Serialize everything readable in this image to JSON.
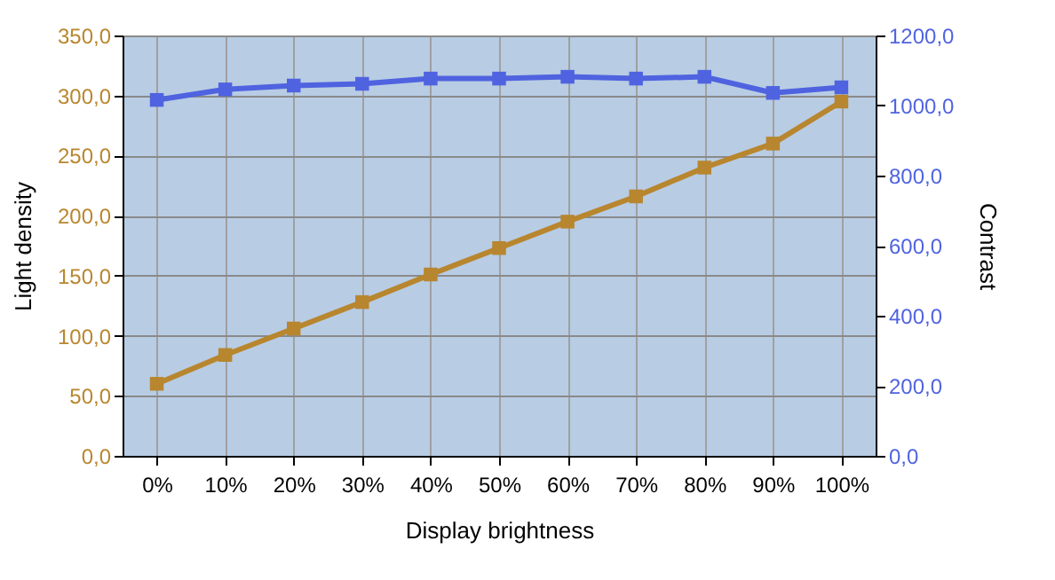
{
  "chart_data": {
    "type": "line",
    "xlabel": "Display brightness",
    "ylabel": "Light density",
    "y2label": "Contrast",
    "categories": [
      "0%",
      "10%",
      "20%",
      "30%",
      "40%",
      "50%",
      "60%",
      "70%",
      "80%",
      "90%",
      "100%"
    ],
    "series": [
      {
        "color": "#b8862e",
        "values": [
          60,
          84,
          106,
          128,
          151,
          173,
          195,
          216,
          240,
          260,
          295
        ]
      },
      {
        "color": "#4f63e0",
        "axis": "y2",
        "values": [
          1016,
          1046,
          1057,
          1062,
          1077,
          1077,
          1082,
          1077,
          1082,
          1036,
          1052
        ]
      }
    ],
    "ylim": [
      0,
      350
    ],
    "yticks": [
      {
        "value": 0,
        "label": "0,0"
      },
      {
        "value": 50,
        "label": "50,0"
      },
      {
        "value": 100,
        "label": "100,0"
      },
      {
        "value": 150,
        "label": "150,0"
      },
      {
        "value": 200,
        "label": "200,0"
      },
      {
        "value": 250,
        "label": "250,0"
      },
      {
        "value": 300,
        "label": "300,0"
      },
      {
        "value": 350,
        "label": "350,0"
      }
    ],
    "y2lim": [
      0,
      1200
    ],
    "y2ticks": [
      {
        "value": 0,
        "label": "0,0"
      },
      {
        "value": 200,
        "label": "200,0"
      },
      {
        "value": 400,
        "label": "400,0"
      },
      {
        "value": 600,
        "label": "600,0"
      },
      {
        "value": 800,
        "label": "800,0"
      },
      {
        "value": 1000,
        "label": "1000,0"
      },
      {
        "value": 1200,
        "label": "1200,0"
      }
    ],
    "grid": true,
    "marker": "square",
    "line_style": "solid"
  }
}
